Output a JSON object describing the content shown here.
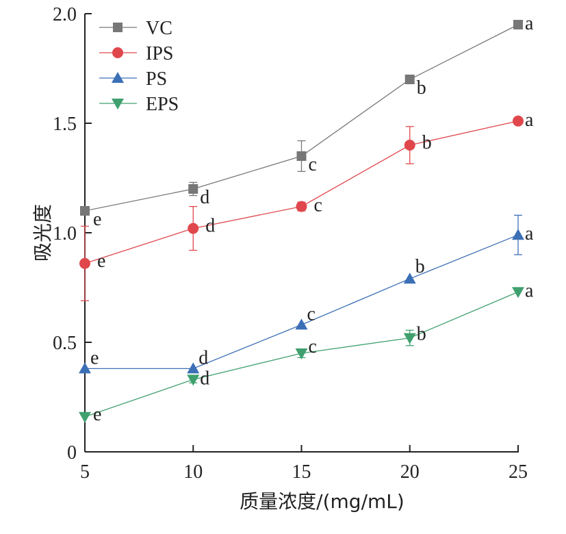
{
  "chart_data": {
    "type": "line",
    "xlabel": "质量浓度/(mg/mL)",
    "ylabel": "吸光度",
    "x": [
      5,
      10,
      15,
      20,
      25
    ],
    "xlim": [
      5,
      25
    ],
    "ylim": [
      0,
      2.0
    ],
    "x_ticks": [
      "5",
      "10",
      "15",
      "20",
      "25"
    ],
    "y_ticks": [
      "0",
      "0.5",
      "1.0",
      "1.5",
      "2.0"
    ],
    "legend_position": "top-left",
    "grid": false,
    "series": [
      {
        "name": "VC",
        "color": "#777777",
        "marker": "square",
        "values": [
          1.1,
          1.2,
          1.35,
          1.7,
          1.95
        ],
        "errors": [
          0.0,
          0.03,
          0.07,
          0.0,
          0.0
        ],
        "labels": [
          "e",
          "d",
          "c",
          "b",
          "a"
        ]
      },
      {
        "name": "IPS",
        "color": "#e0474c",
        "marker": "circle",
        "values": [
          0.86,
          1.02,
          1.12,
          1.4,
          1.51
        ],
        "errors": [
          0.17,
          0.1,
          0.02,
          0.085,
          0.0
        ],
        "labels": [
          "e",
          "d",
          "c",
          "b",
          "a"
        ]
      },
      {
        "name": "PS",
        "color": "#3b6fb6",
        "marker": "triangle-up",
        "values": [
          0.38,
          0.38,
          0.58,
          0.79,
          0.99
        ],
        "errors": [
          0.0,
          0.0,
          0.0,
          0.0,
          0.09
        ],
        "labels": [
          "e",
          "d",
          "c",
          "b",
          "a"
        ]
      },
      {
        "name": "EPS",
        "color": "#3fa06e",
        "marker": "triangle-down",
        "values": [
          0.16,
          0.33,
          0.45,
          0.52,
          0.73
        ],
        "errors": [
          0.0,
          0.015,
          0.02,
          0.035,
          0.0
        ],
        "labels": [
          "e",
          "d",
          "c",
          "b",
          "a"
        ]
      }
    ]
  }
}
